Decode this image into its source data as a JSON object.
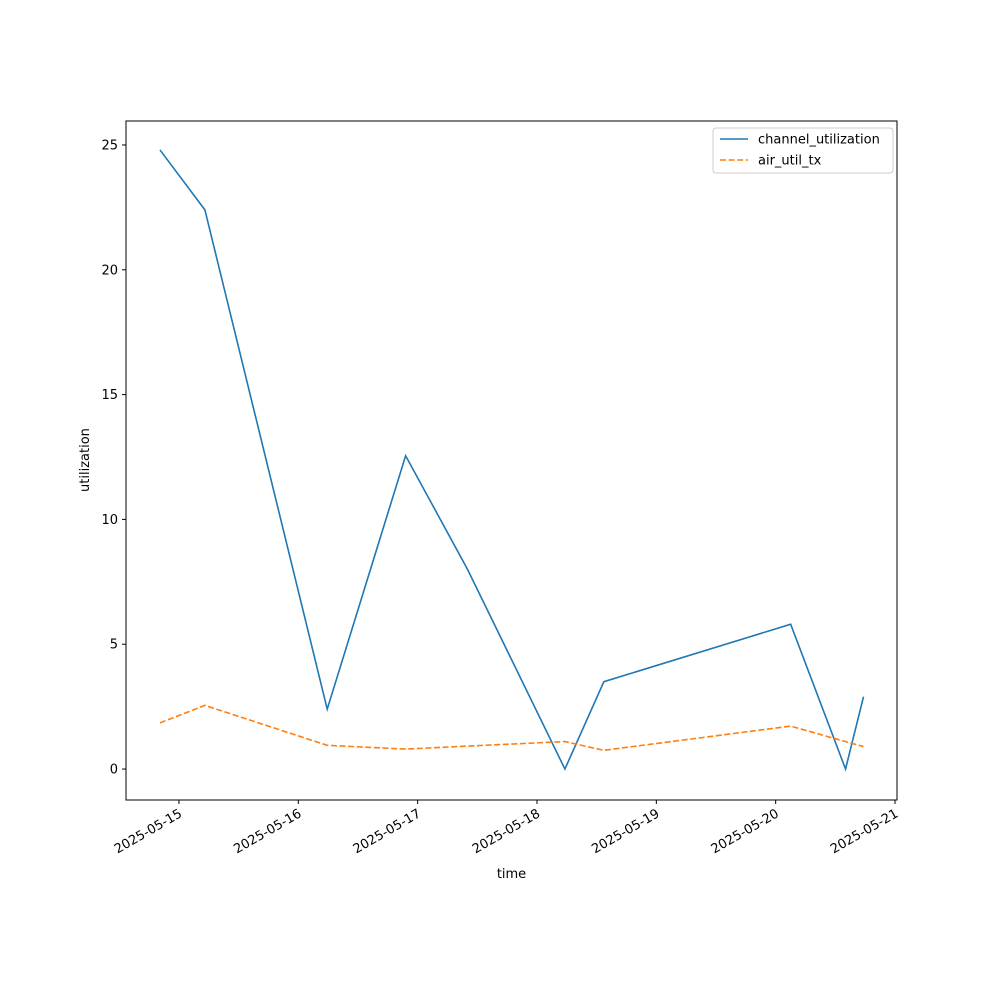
{
  "chart_data": {
    "type": "line",
    "xlabel": "time",
    "ylabel": "utilization",
    "x": [
      "2025-05-14T20:11",
      "2025-05-15T05:13",
      "2025-05-16T05:49",
      "2025-05-16T21:35",
      "2025-05-17T10:02",
      "2025-05-18T05:37",
      "2025-05-18T13:27",
      "2025-05-20T03:01",
      "2025-05-20T14:03",
      "2025-05-20T17:40"
    ],
    "series": [
      {
        "name": "channel_utilization",
        "color": "#1f77b4",
        "dash": "solid",
        "values": [
          24.8,
          22.4,
          2.4,
          12.55,
          8.0,
          0,
          3.5,
          5.8,
          0,
          2.9
        ]
      },
      {
        "name": "air_util_tx",
        "color": "#ff7f0e",
        "dash": "dashed",
        "values": [
          1.85,
          2.55,
          0.95,
          0.8,
          0.92,
          1.1,
          0.75,
          1.72,
          1.1,
          0.9
        ]
      }
    ],
    "xlim": [
      "2025-05-14T13:21",
      "2025-05-21T00:24"
    ],
    "xticks": [
      "2025-05-15",
      "2025-05-16",
      "2025-05-17",
      "2025-05-18",
      "2025-05-19",
      "2025-05-20",
      "2025-05-21"
    ],
    "ylim": [
      -1.24,
      25.96
    ],
    "yticks": [
      0,
      5,
      10,
      15,
      20,
      25
    ],
    "grid": false,
    "legend": "upper right"
  }
}
